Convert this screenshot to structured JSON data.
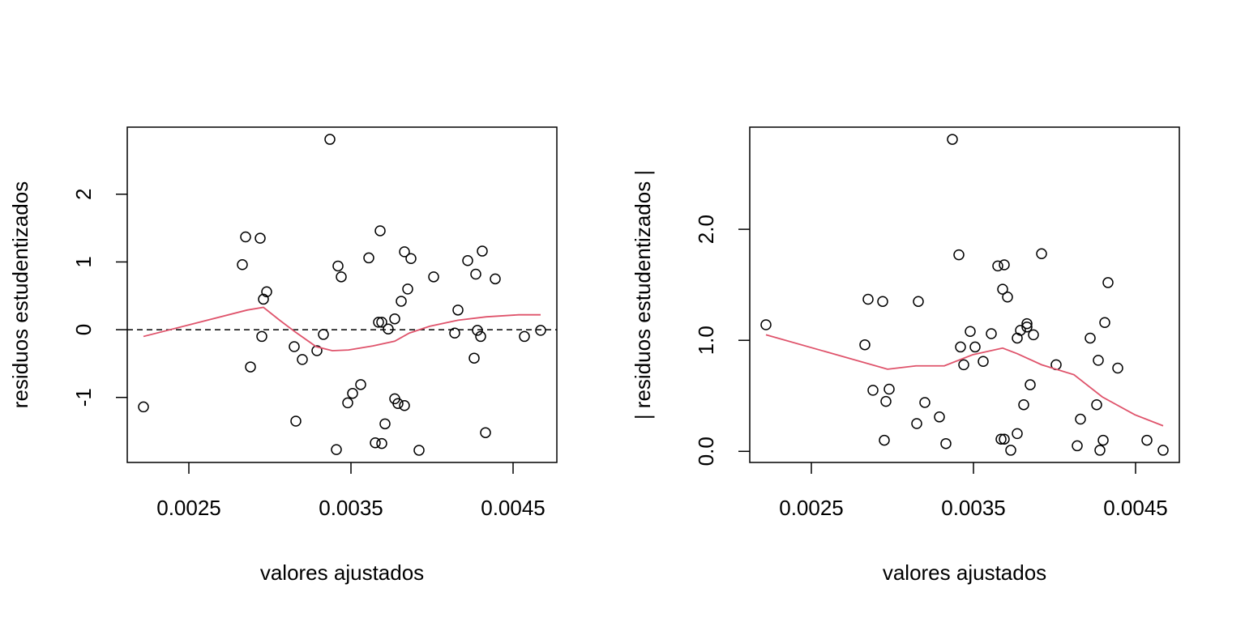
{
  "chart_data": [
    {
      "type": "scatter",
      "xlabel": "valores ajustados",
      "ylabel": "residuos estudentizados",
      "color": "#000000",
      "xlim": [
        0.00212,
        0.00477
      ],
      "ylim": [
        -1.96,
        2.99
      ],
      "xticks": [
        0.0025,
        0.0035,
        0.0045
      ],
      "yticks": [
        -1,
        0,
        1,
        2
      ],
      "x": [
        0.00222,
        0.00285,
        0.00283,
        0.00288,
        0.00294,
        0.00296,
        0.00298,
        0.00295,
        0.00315,
        0.00316,
        0.0032,
        0.00329,
        0.00333,
        0.00337,
        0.00342,
        0.00344,
        0.00341,
        0.00348,
        0.00351,
        0.00356,
        0.00361,
        0.00365,
        0.00368,
        0.00367,
        0.00369,
        0.00369,
        0.00371,
        0.00373,
        0.00377,
        0.00377,
        0.00379,
        0.00381,
        0.00383,
        0.00383,
        0.00385,
        0.00387,
        0.00392,
        0.00401,
        0.00414,
        0.00416,
        0.00422,
        0.00426,
        0.00427,
        0.00428,
        0.0043,
        0.00431,
        0.00433,
        0.00439,
        0.00457,
        0.00467
      ],
      "values": [
        -1.14,
        1.37,
        0.96,
        -0.55,
        1.35,
        0.45,
        0.56,
        -0.1,
        -0.25,
        -1.35,
        -0.44,
        -0.31,
        -0.07,
        2.81,
        0.94,
        0.78,
        -1.77,
        -1.08,
        -0.94,
        -0.81,
        1.06,
        -1.67,
        1.46,
        0.11,
        0.11,
        -1.68,
        -1.39,
        0.01,
        0.16,
        -1.02,
        -1.09,
        0.42,
        -1.12,
        1.15,
        0.6,
        1.05,
        -1.78,
        0.78,
        -0.05,
        0.29,
        1.02,
        -0.42,
        0.82,
        -0.01,
        -0.1,
        1.16,
        -1.52,
        0.75,
        -0.1,
        -0.01
      ],
      "hline": 0,
      "smooth": {
        "color": "#df536b",
        "x": [
          0.00222,
          0.00286,
          0.00296,
          0.00306,
          0.00316,
          0.003285,
          0.003385,
          0.003485,
          0.003635,
          0.00377,
          0.00386,
          0.003985,
          0.00416,
          0.004335,
          0.004535,
          0.00467
        ],
        "values": [
          -0.1,
          0.29,
          0.33,
          0.14,
          -0.04,
          -0.25,
          -0.31,
          -0.3,
          -0.24,
          -0.17,
          -0.05,
          0.05,
          0.14,
          0.19,
          0.22,
          0.22
        ]
      }
    },
    {
      "type": "scatter",
      "xlabel": "valores ajustados",
      "ylabel": "| residuos estudentizados |",
      "color": "#000000",
      "xlim": [
        0.00212,
        0.00477
      ],
      "ylim": [
        -0.1,
        2.92
      ],
      "xticks": [
        0.0025,
        0.0035,
        0.0045
      ],
      "yticks": [
        {
          "value": 0,
          "label": "0.0"
        },
        {
          "value": 1,
          "label": "1.0"
        },
        {
          "value": 2,
          "label": "2.0"
        }
      ],
      "x": [
        0.00222,
        0.00285,
        0.00283,
        0.00288,
        0.00294,
        0.00296,
        0.00298,
        0.00295,
        0.00315,
        0.00316,
        0.0032,
        0.00329,
        0.00333,
        0.00337,
        0.00342,
        0.00344,
        0.00341,
        0.00348,
        0.00351,
        0.00356,
        0.00361,
        0.00365,
        0.00368,
        0.00367,
        0.00369,
        0.00369,
        0.00371,
        0.00373,
        0.00377,
        0.00377,
        0.00379,
        0.00381,
        0.00383,
        0.00383,
        0.00385,
        0.00387,
        0.00392,
        0.00401,
        0.00414,
        0.00416,
        0.00422,
        0.00426,
        0.00427,
        0.00428,
        0.0043,
        0.00431,
        0.00433,
        0.00439,
        0.00457,
        0.00467
      ],
      "values": [
        1.14,
        1.37,
        0.96,
        0.55,
        1.35,
        0.45,
        0.56,
        0.1,
        0.25,
        1.35,
        0.44,
        0.31,
        0.07,
        2.81,
        0.94,
        0.78,
        1.77,
        1.08,
        0.94,
        0.81,
        1.06,
        1.67,
        1.46,
        0.11,
        0.11,
        1.68,
        1.39,
        0.01,
        0.16,
        1.02,
        1.09,
        0.42,
        1.12,
        1.15,
        0.6,
        1.05,
        1.78,
        0.78,
        0.05,
        0.29,
        1.02,
        0.42,
        0.82,
        0.01,
        0.1,
        1.16,
        1.52,
        0.75,
        0.1,
        0.01
      ],
      "smooth": {
        "color": "#df536b",
        "x": [
          0.00222,
          0.00297,
          0.003145,
          0.00332,
          0.003495,
          0.00368,
          0.00377,
          0.00392,
          0.00412,
          0.004295,
          0.004495,
          0.00467
        ],
        "values": [
          1.05,
          0.74,
          0.77,
          0.77,
          0.87,
          0.93,
          0.88,
          0.78,
          0.69,
          0.49,
          0.33,
          0.23
        ]
      }
    }
  ]
}
